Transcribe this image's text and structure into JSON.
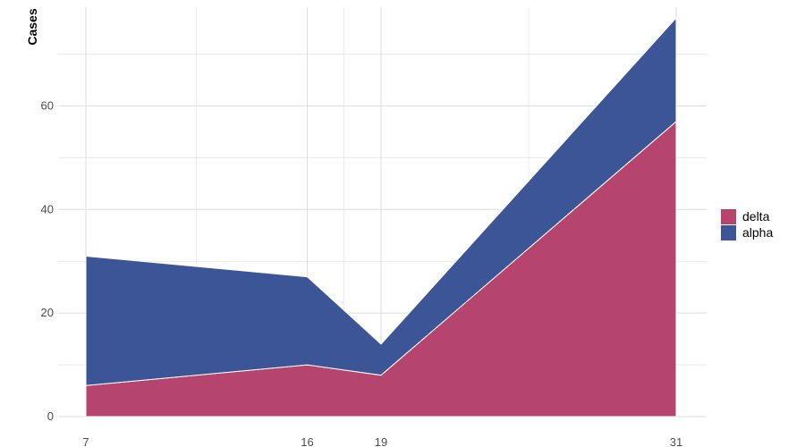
{
  "chart_data": {
    "type": "area",
    "stacked": true,
    "x": [
      7,
      16,
      19,
      31
    ],
    "series": [
      {
        "name": "delta",
        "values": [
          6,
          10,
          8,
          57
        ],
        "color": "#B5446E"
      },
      {
        "name": "alpha",
        "values": [
          25,
          17,
          6,
          20
        ],
        "color": "#3C5597"
      }
    ],
    "xticks": [
      7,
      16,
      19,
      31
    ],
    "yticks": [
      0,
      20,
      40,
      60
    ],
    "xlabel": "",
    "ylabel": "Cases",
    "xlim": [
      7,
      31
    ],
    "ylim": [
      0,
      77
    ],
    "grid": true,
    "legend_position": "right"
  }
}
